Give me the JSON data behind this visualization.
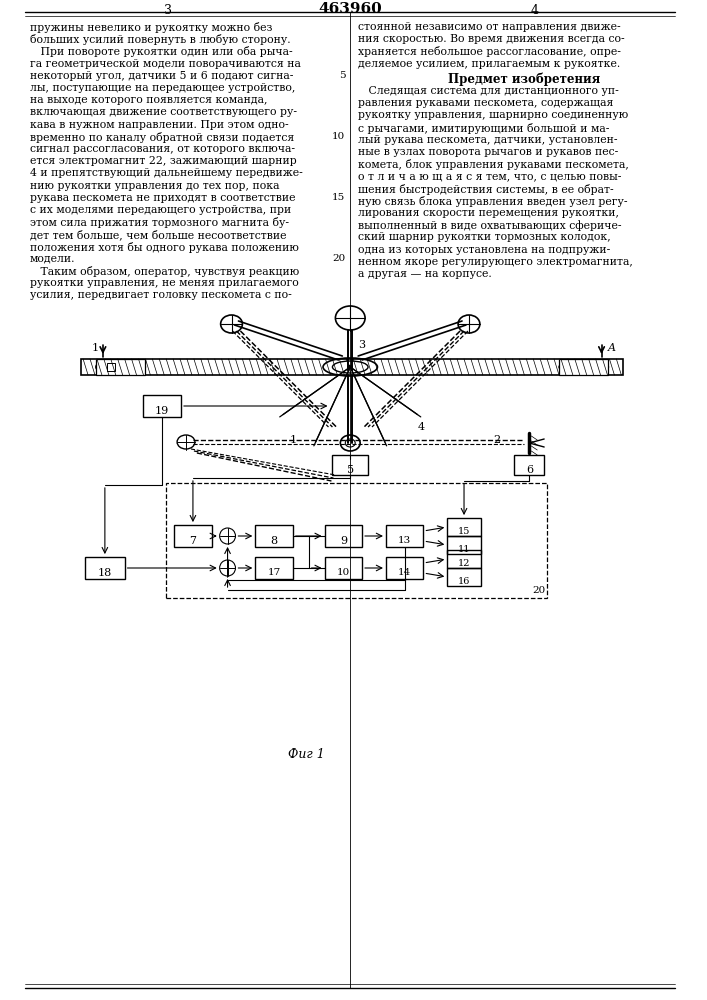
{
  "bg_color": "#ffffff",
  "line_color": "#000000",
  "text_color": "#000000",
  "title": "463960",
  "left_text": [
    "пружины невелико и рукоятку можно без",
    "больших усилий повернуть в любую сторону.",
    "   При повороте рукоятки один или оба рыча-",
    "га геометрической модели поворачиваются на",
    "некоторый угол, датчики 5 и 6 подают сигна-",
    "лы, поступающие на передающее устройство,",
    "на выходе которого появляется команда,",
    "включающая движение соответствующего ру-",
    "кава в нужном направлении. При этом одно-",
    "временно по каналу обратной связи подается",
    "сигнал рассогласования, от которого включа-",
    "ется электромагнит 22, зажимающий шарнир",
    "4 и препятствующий дальнейшему передвиже-",
    "нию рукоятки управления до тех пор, пока",
    "рукава пескомета не приходят в соответствие",
    "с их моделями передающего устройства, при",
    "этом сила прижатия тормозного магнита бу-",
    "дет тем больше, чем больше несоответствие",
    "положения хотя бы одного рукава положению",
    "модели.",
    "   Таким образом, оператор, чувствуя реакцию",
    "рукоятки управления, не меняя прилагаемого",
    "усилия, передвигает головку пескомета с по-"
  ],
  "right_text_top": [
    "стоянной независимо от направления движе-",
    "ния скоростью. Во время движения всегда со-",
    "храняется небольшое рассогласование, опре-",
    "деляемое усилием, прилагаемым к рукоятке."
  ],
  "subject_heading": "Предмет изобретения",
  "subject_text": [
    "   Следящая система для дистанционного уп-",
    "равления рукавами пескомета, содержащая",
    "рукоятку управления, шарнирно соединенную",
    "с рычагами, имитирующими большой и ма-",
    "лый рукава пескомета, датчики, установлен-",
    "ные в узлах поворота рычагов и рукавов пес-",
    "комета, блок управления рукавами пескомета,",
    "о т л и ч а ю щ а я с я тем, что, с целью повы-",
    "шения быстродействия системы, в ее обрат-",
    "ную связь блока управления введен узел регу-",
    "лирования скорости перемещения рукоятки,",
    "выполненный в виде охватывающих сфериче-",
    "ский шарнир рукоятки тормозных колодок,",
    "одна из которых установлена на подпружи-",
    "ненном якоре регулирующего электромагнита,",
    "а другая — на корпусе."
  ],
  "fig_caption": "Фиг 1"
}
